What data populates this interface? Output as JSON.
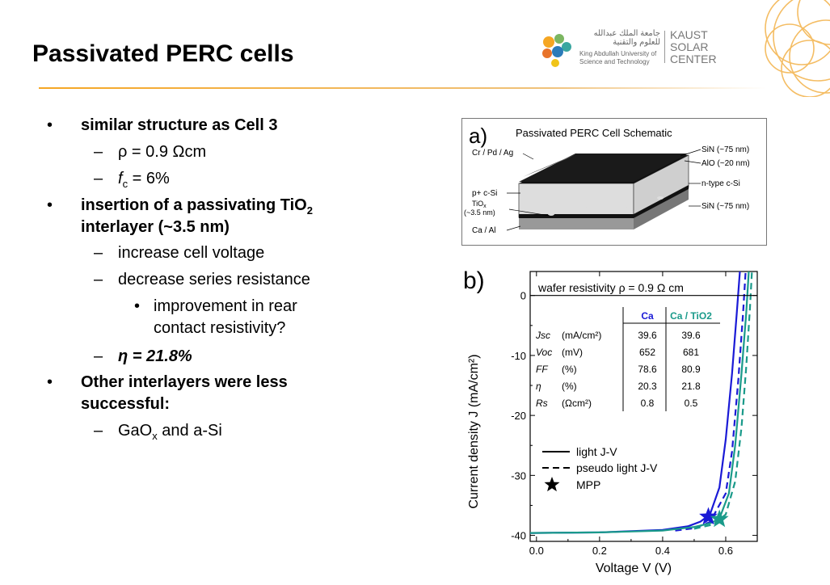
{
  "slide": {
    "title": "Passivated PERC cells",
    "logo": {
      "arabic": "جامعة الملك عبدالله للعلوم والتقنية",
      "english_line1": "King Abdullah University of",
      "english_line2": "Science and Technology",
      "ksc_line1": "KAUST",
      "ksc_line2": "SOLAR",
      "ksc_line3": "CENTER"
    }
  },
  "bullets": {
    "b1": "similar structure as Cell 3",
    "b1_rho": "ρ = 0.9 Ωcm",
    "b1_fc_sym": "f",
    "b1_fc_sub": "c",
    "b1_fc_val": " = 6%",
    "b2_l1_pre": "insertion of a passivating TiO",
    "b2_l1_sub": "2",
    "b2_l2": "interlayer (~3.5 nm)",
    "b2_s1": "increase cell voltage",
    "b2_s2": "decrease series resistance",
    "b2_s2_sub_l1": "improvement in rear",
    "b2_s2_sub_l2": "contact resistivity?",
    "b2_eta": "η = 21.8%",
    "b3_l1": "Other interlayers were less",
    "b3_l2": "successful:",
    "b3_s1_pre": "GaO",
    "b3_s1_sub": "x",
    "b3_s1_post": " and a-Si"
  },
  "schematic": {
    "panel_label": "a)",
    "title": "Passivated PERC Cell Schematic",
    "labels": {
      "contact": "Cr / Pd / Ag",
      "pplus": "p+ c-Si",
      "tio2": "TiO",
      "tio2_sub": "x",
      "tio2_thick": "(~3.5 nm)",
      "rear": "Ca / Al",
      "sinx_top": "SiN (~75 nm)",
      "alox": "AlO (~20 nm)",
      "ntype": "n-type c-Si",
      "sinx_bot": "SiN (~75 nm)"
    }
  },
  "chart_data": {
    "type": "line",
    "panel_label": "b)",
    "annotation": "wafer resistivity ρ = 0.9 Ω cm",
    "xlabel": "Voltage V (V)",
    "ylabel": "Current density J (mA/cm²)",
    "xlim": [
      -0.02,
      0.7
    ],
    "ylim": [
      -41,
      4
    ],
    "x_ticks": [
      0.0,
      0.2,
      0.4,
      0.6
    ],
    "x_tick_labels": [
      "0.0",
      "0.2",
      "0.4",
      "0.6"
    ],
    "y_ticks": [
      0,
      -10,
      -20,
      -30,
      -40
    ],
    "y_tick_labels": [
      "0",
      "-10",
      "-20",
      "-30",
      "-40"
    ],
    "series": [
      {
        "name": "Ca",
        "style": "light J-V",
        "color": "#1a1ad6",
        "points": [
          [
            -0.02,
            -39.6
          ],
          [
            0.2,
            -39.5
          ],
          [
            0.4,
            -39.1
          ],
          [
            0.48,
            -38.5
          ],
          [
            0.52,
            -37.7
          ],
          [
            0.55,
            -36.5
          ],
          [
            0.58,
            -32
          ],
          [
            0.6,
            -24
          ],
          [
            0.62,
            -13
          ],
          [
            0.635,
            -3
          ],
          [
            0.645,
            4
          ]
        ]
      },
      {
        "name": "Ca",
        "style": "pseudo light J-V",
        "color": "#1a1ad6",
        "points": [
          [
            0.44,
            -39.2
          ],
          [
            0.5,
            -38.8
          ],
          [
            0.55,
            -37.8
          ],
          [
            0.6,
            -33
          ],
          [
            0.62,
            -26
          ],
          [
            0.64,
            -14
          ],
          [
            0.655,
            -3
          ],
          [
            0.663,
            4
          ]
        ]
      },
      {
        "name": "Ca / TiO2",
        "style": "light J-V",
        "color": "#1a9a8a",
        "points": [
          [
            -0.02,
            -39.6
          ],
          [
            0.2,
            -39.5
          ],
          [
            0.4,
            -39.2
          ],
          [
            0.5,
            -38.6
          ],
          [
            0.55,
            -38.0
          ],
          [
            0.58,
            -37.2
          ],
          [
            0.61,
            -33
          ],
          [
            0.63,
            -25
          ],
          [
            0.65,
            -13
          ],
          [
            0.665,
            -3
          ],
          [
            0.673,
            4
          ]
        ]
      },
      {
        "name": "Ca / TiO2",
        "style": "pseudo light J-V",
        "color": "#1a9a8a",
        "points": [
          [
            0.5,
            -38.9
          ],
          [
            0.56,
            -38.2
          ],
          [
            0.6,
            -36.5
          ],
          [
            0.63,
            -31
          ],
          [
            0.65,
            -22
          ],
          [
            0.665,
            -12
          ],
          [
            0.677,
            -2
          ],
          [
            0.683,
            4
          ]
        ]
      }
    ],
    "mpp": [
      {
        "name": "Ca",
        "v": 0.545,
        "j": -36.9,
        "color": "#1a1ad6"
      },
      {
        "name": "Ca / TiO2",
        "v": 0.58,
        "j": -37.3,
        "color": "#1a9a8a"
      }
    ],
    "legend": {
      "position": "bottom-left",
      "entries": [
        "light J-V",
        "pseudo light J-V",
        "MPP"
      ]
    },
    "table": {
      "columns": [
        "Ca",
        "Ca / TiO2"
      ],
      "rows": [
        {
          "param": "Jsc",
          "unit": "(mA/cm²)",
          "ca": "39.6",
          "catio2": "39.6"
        },
        {
          "param": "Voc",
          "unit": "(mV)",
          "ca": "652",
          "catio2": "681"
        },
        {
          "param": "FF",
          "unit": "(%)",
          "ca": "78.6",
          "catio2": "80.9"
        },
        {
          "param": "η",
          "unit": "(%)",
          "ca": "20.3",
          "catio2": "21.8"
        },
        {
          "param": "Rs",
          "unit": "(Ωcm²)",
          "ca": "0.8",
          "catio2": "0.5"
        }
      ]
    }
  }
}
